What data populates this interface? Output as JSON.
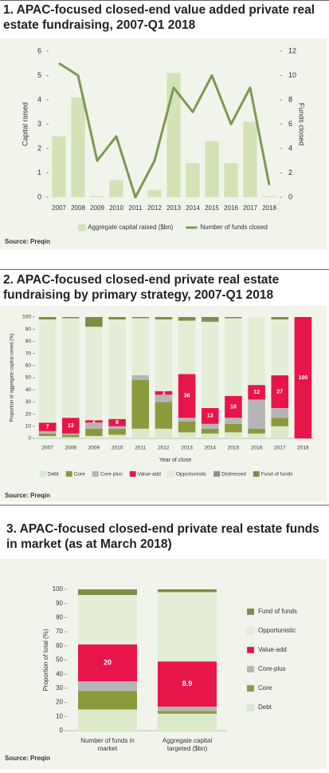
{
  "chart_data": [
    {
      "type": "bar_line",
      "title": "1. APAC-focused closed-end value added private real estate fundraising, 2007-Q1 2018",
      "source": "Source: Preqin",
      "categories": [
        "2007",
        "2008",
        "2009",
        "2010",
        "2011",
        "2012",
        "2013",
        "2014",
        "2015",
        "2016",
        "2017",
        "2018"
      ],
      "series": [
        {
          "name": "Aggregate capital raised ($bn)",
          "color": "#d3e3b6",
          "kind": "bar",
          "values": [
            2.5,
            4.1,
            0.05,
            0.7,
            0,
            0.3,
            5.1,
            1.4,
            2.3,
            1.4,
            3.1,
            0.05
          ]
        },
        {
          "name": "Number of funds closed",
          "color": "#7b9a52",
          "kind": "line",
          "axis": "y2",
          "values": [
            11,
            10,
            3,
            5,
            0,
            3,
            9,
            7,
            10,
            6,
            9,
            1
          ]
        }
      ],
      "ylabel": "Capital raised",
      "y2label": "Funds closed",
      "ylim": [
        0,
        6
      ],
      "yticks": [
        0,
        1,
        2,
        3,
        4,
        5,
        6
      ],
      "y2lim": [
        0,
        12
      ],
      "y2ticks": [
        0,
        2,
        4,
        6,
        8,
        10,
        12
      ],
      "legend": "bottom"
    },
    {
      "type": "stacked_bar",
      "title": "2. APAC-focused closed-end private real estate fundraising by primary strategy, 2007-Q1 2018",
      "source": "Source: Preqin",
      "categories": [
        "2007",
        "2008",
        "2009",
        "2010",
        "2011",
        "2012",
        "2013",
        "2014",
        "2015",
        "2016",
        "2017",
        "2018"
      ],
      "series": [
        {
          "name": "Debt",
          "color": "#dbe9c8",
          "values": [
            2,
            1,
            2,
            3,
            8,
            8,
            5,
            4,
            5,
            4,
            10,
            0
          ]
        },
        {
          "name": "Core",
          "color": "#8b9a3c",
          "values": [
            2,
            2,
            6,
            5,
            40,
            22,
            9,
            4,
            7,
            4,
            7,
            0
          ]
        },
        {
          "name": "Core plus",
          "color": "#b5b5b5",
          "values": [
            2,
            1,
            5,
            2,
            4,
            6,
            3,
            4,
            5,
            24,
            8,
            0
          ]
        },
        {
          "name": "Value-add",
          "color": "#e8154b",
          "show_labels": true,
          "values": [
            7,
            13,
            2,
            6,
            0,
            3,
            36,
            13,
            18,
            12,
            27,
            100
          ]
        },
        {
          "name": "Opportunistic",
          "color": "#e4eed7",
          "values": [
            85,
            82,
            77,
            82,
            47,
            59,
            44,
            71,
            64,
            56,
            46,
            0
          ]
        },
        {
          "name": "Distressed",
          "color": "#8e8e8e",
          "values": [
            0,
            0,
            0,
            0,
            0,
            0,
            0,
            1,
            0,
            0,
            0,
            0
          ]
        },
        {
          "name": "Fund of funds",
          "color": "#7f8c48",
          "values": [
            2,
            1,
            8,
            2,
            1,
            2,
            3,
            3,
            1,
            0,
            2,
            0
          ]
        }
      ],
      "xlabel": "Year of close",
      "ylabel": "Proportion of aggregate capital raised (%)",
      "ylim": [
        0,
        100
      ],
      "yticks": [
        0,
        10,
        20,
        30,
        40,
        50,
        60,
        70,
        80,
        90,
        100
      ],
      "legend": "bottom"
    },
    {
      "type": "stacked_bar",
      "title": "3. APAC-focused closed-end private real estate funds in market (as at March 2018)",
      "source": "Source: Preqin",
      "categories": [
        "Number of funds in market",
        "Aggregate capital targeted ($bn)"
      ],
      "series": [
        {
          "name": "Debt",
          "color": "#dbe9c8",
          "values": [
            15,
            12
          ]
        },
        {
          "name": "Core",
          "color": "#8b9a3c",
          "values": [
            13,
            2
          ]
        },
        {
          "name": "Core-plus",
          "color": "#b5b5b5",
          "values": [
            7,
            3
          ]
        },
        {
          "name": "Value-add",
          "color": "#e8154b",
          "values": [
            26,
            32
          ],
          "segment_labels": [
            20,
            8.9
          ]
        },
        {
          "name": "Opportunistic",
          "color": "#e4eed7",
          "values": [
            35,
            49
          ]
        },
        {
          "name": "Fund of funds",
          "color": "#7f8c48",
          "values": [
            4,
            2
          ]
        }
      ],
      "ylabel": "Proportion of total (%)",
      "ylim": [
        0,
        100
      ],
      "yticks": [
        0,
        10,
        20,
        30,
        40,
        50,
        60,
        70,
        80,
        90,
        100
      ],
      "legend": "right"
    }
  ]
}
